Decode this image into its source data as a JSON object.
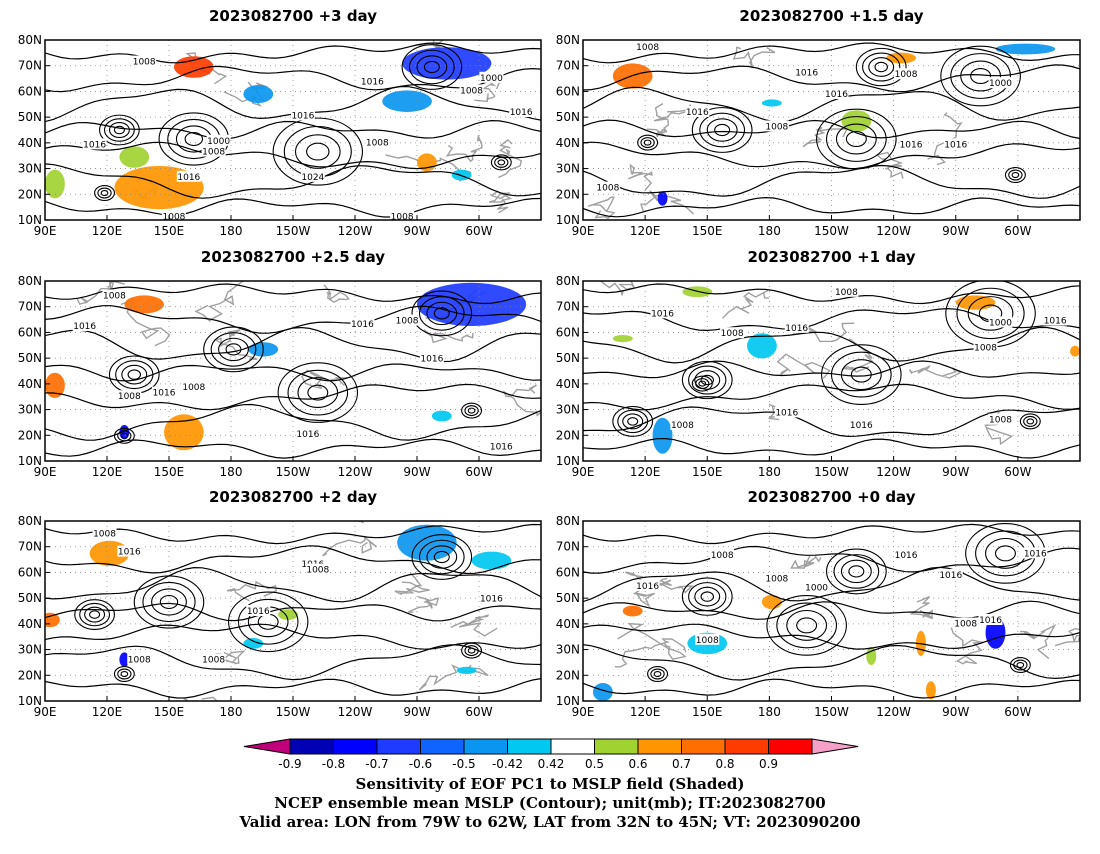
{
  "panels": [
    {
      "title": "2023082700 +3 day",
      "x_ticks": [
        "90E",
        "120E",
        "150E",
        "180",
        "150W",
        "120W",
        "90W",
        "60W"
      ],
      "y_ticks": [
        "80N",
        "70N",
        "60N",
        "50N",
        "40N",
        "30N",
        "20N",
        "10N"
      ],
      "contour_labels": [
        "1008",
        "1016",
        "1000",
        "1008",
        "1016",
        "1016",
        "1008",
        "1000",
        "1016",
        "1008",
        "1024",
        "1016",
        "1008",
        "1008"
      ]
    },
    {
      "title": "2023082700 +1.5 day",
      "x_ticks": [
        "90E",
        "120E",
        "150E",
        "180",
        "150W",
        "120W",
        "90W",
        "60W"
      ],
      "y_ticks": [
        "80N",
        "70N",
        "60N",
        "50N",
        "40N",
        "30N",
        "20N",
        "10N"
      ],
      "contour_labels": [
        "1008",
        "1016",
        "1008",
        "1000",
        "1016",
        "1016",
        "1008",
        "1016",
        "1016",
        "1008"
      ]
    },
    {
      "title": "2023082700 +2.5 day",
      "x_ticks": [
        "90E",
        "120E",
        "150E",
        "180",
        "150W",
        "120W",
        "90W",
        "60W"
      ],
      "y_ticks": [
        "80N",
        "70N",
        "60N",
        "50N",
        "40N",
        "30N",
        "20N",
        "10N"
      ],
      "contour_labels": [
        "1008",
        "1016",
        "1016",
        "1008",
        "1016",
        "1008",
        "1016",
        "1008",
        "1016",
        "1016"
      ]
    },
    {
      "title": "2023082700 +1 day",
      "x_ticks": [
        "90E",
        "120E",
        "150E",
        "180",
        "150W",
        "120W",
        "90W",
        "60W"
      ],
      "y_ticks": [
        "80N",
        "70N",
        "60N",
        "50N",
        "40N",
        "30N",
        "20N",
        "10N"
      ],
      "contour_labels": [
        "1008",
        "1016",
        "1008",
        "1016",
        "1000",
        "1016",
        "1008",
        "1016",
        "1016",
        "1008",
        "1008"
      ]
    },
    {
      "title": "2023082700 +2 day",
      "x_ticks": [
        "90E",
        "120E",
        "150E",
        "180",
        "150W",
        "120W",
        "90W",
        "60W"
      ],
      "y_ticks": [
        "80N",
        "70N",
        "60N",
        "50N",
        "40N",
        "30N",
        "20N",
        "10N"
      ],
      "contour_labels": [
        "1008",
        "1016",
        "1016",
        "1008",
        "1016",
        "1016",
        "1008",
        "1008"
      ]
    },
    {
      "title": "2023082700 +0 day",
      "x_ticks": [
        "90E",
        "120E",
        "150E",
        "180",
        "150W",
        "120W",
        "90W",
        "60W"
      ],
      "y_ticks": [
        "80N",
        "70N",
        "60N",
        "50N",
        "40N",
        "30N",
        "20N",
        "10N"
      ],
      "contour_labels": [
        "1008",
        "1016",
        "1016",
        "1008",
        "1016",
        "1000",
        "1016",
        "1008",
        "1016",
        "1008"
      ]
    }
  ],
  "colorbar": {
    "labels": [
      "-0.9",
      "-0.8",
      "-0.7",
      "-0.6",
      "-0.5",
      "-0.42",
      "0.42",
      "0.5",
      "0.6",
      "0.7",
      "0.8",
      "0.9"
    ],
    "colors": [
      "#c0007a",
      "#0000b4",
      "#0000ff",
      "#1e3cff",
      "#0f64ff",
      "#0a96f0",
      "#00c8f0",
      "#ffffff",
      "#a0d232",
      "#ff9600",
      "#ff6e00",
      "#ff3c00",
      "#ff0000",
      "#f5a0c8"
    ]
  },
  "caption": {
    "line1": "Sensitivity of EOF PC1 to MSLP field (Shaded)",
    "line2": "NCEP ensemble mean MSLP (Contour); unit(mb); IT:2023082700",
    "line3": "Valid area: LON from 79W to 62W, LAT from 32N to 45N; VT: 2023090200"
  },
  "colors": {
    "contour": "#000000",
    "coast": "#a0a0a0",
    "grid": "#888888"
  }
}
